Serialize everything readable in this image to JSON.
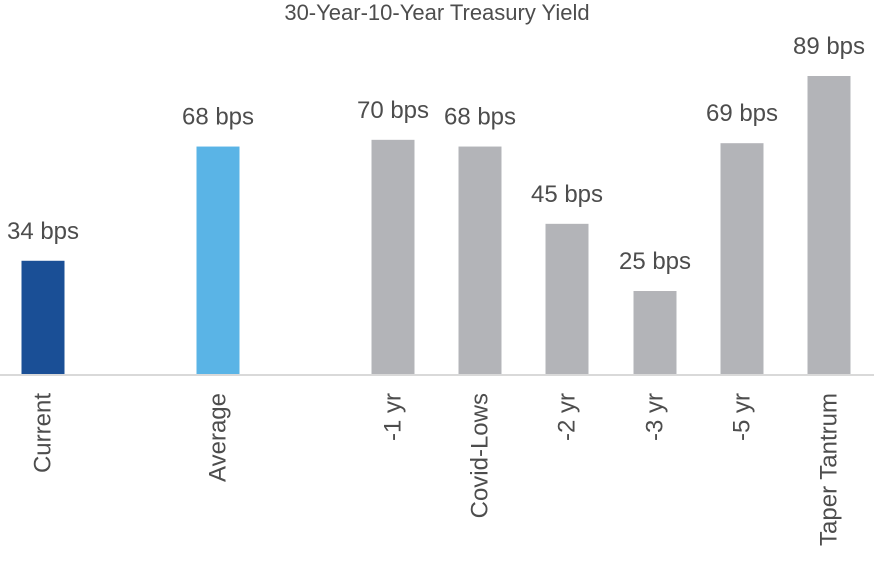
{
  "chart_data": {
    "type": "bar",
    "title": "30-Year-10-Year Treasury Yield",
    "xlabel": "",
    "ylabel": "",
    "unit": "bps",
    "ylim": [
      0,
      89
    ],
    "grid": false,
    "legend": "none",
    "categories": [
      "Current",
      "Average",
      "-1 yr",
      "Covid-Lows",
      "-2 yr",
      "-3 yr",
      "-5 yr",
      "Taper Tantrum"
    ],
    "values": [
      34,
      68,
      70,
      68,
      45,
      25,
      69,
      89
    ],
    "data_labels": [
      "34 bps",
      "68 bps",
      "70 bps",
      "68 bps",
      "45 bps",
      "25 bps",
      "69 bps",
      "89 bps"
    ],
    "colors": [
      "#1a4f96",
      "#5ab4e6",
      "#b3b4b8",
      "#b3b4b8",
      "#b3b4b8",
      "#b3b4b8",
      "#b3b4b8",
      "#b3b4b8"
    ],
    "axis_color": "#d9d9d9",
    "text_color": "#4d4d4d"
  }
}
